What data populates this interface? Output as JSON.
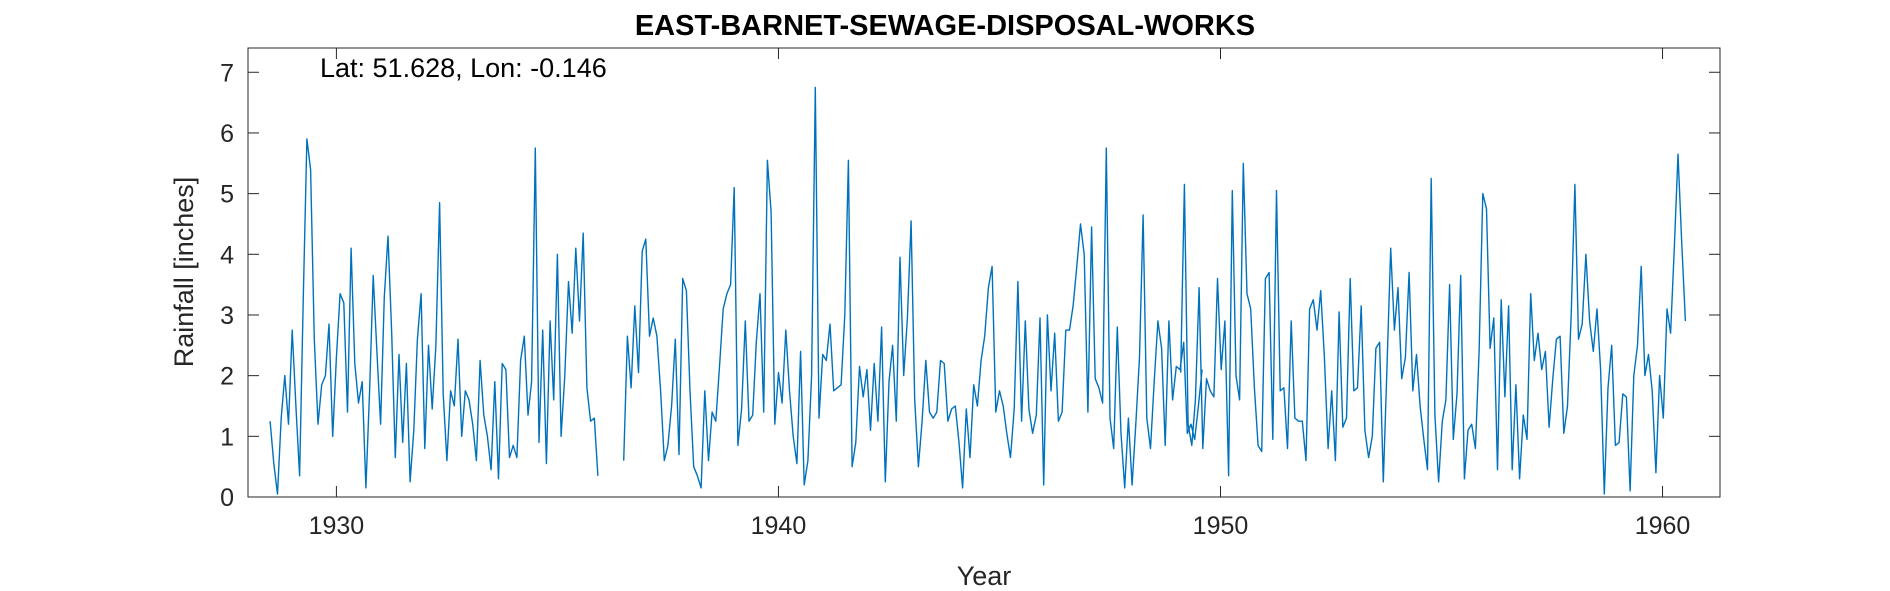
{
  "chart_data": {
    "type": "line",
    "title": "EAST-BARNET-SEWAGE-DISPOSAL-WORKS",
    "annotation": "Lat: 51.628, Lon: -0.146",
    "xlabel": "Year",
    "ylabel": "Rainfall [inches]",
    "xlim": [
      1928.0,
      1961.3
    ],
    "ylim": [
      0,
      7.4
    ],
    "xticks": [
      1930,
      1940,
      1950,
      1960
    ],
    "yticks": [
      0,
      1,
      2,
      3,
      4,
      5,
      6,
      7
    ],
    "grid": false,
    "color": "#0072BD",
    "segments": [
      {
        "start": 1928.5,
        "step": 0.0833333,
        "values": [
          1.25,
          0.55,
          0.05,
          1.3,
          2.0,
          1.2,
          2.75,
          1.5,
          0.35,
          3.3,
          5.9,
          5.4,
          2.6,
          1.2,
          1.85,
          2.0,
          2.85,
          1.0,
          2.3,
          3.35,
          3.2,
          1.4,
          4.1,
          2.2,
          1.55,
          1.9,
          0.15,
          1.75,
          3.65,
          2.4,
          1.2,
          3.3,
          4.3,
          2.7,
          0.65,
          2.35,
          0.9,
          2.2,
          0.25,
          1.1,
          2.6,
          3.35,
          0.8,
          2.5,
          1.45,
          2.5,
          4.85,
          1.7,
          0.6,
          1.75,
          1.5,
          2.6,
          1.0,
          1.75,
          1.6,
          1.2,
          0.6,
          2.25,
          1.35,
          1.0,
          0.45,
          1.9,
          0.3,
          2.2,
          2.1,
          0.65,
          0.85,
          0.65,
          2.25,
          2.65,
          1.35,
          1.9,
          5.75,
          0.9,
          2.75,
          0.55,
          2.9,
          1.6,
          4.0,
          1.0,
          2.0,
          3.55,
          2.7,
          4.1,
          2.9,
          4.35,
          1.8,
          1.25,
          1.3,
          0.35
        ]
      },
      {
        "start": 1936.5,
        "step": 0.0833333,
        "values": [
          0.6,
          2.65,
          1.8,
          3.15,
          2.05,
          4.05,
          4.25,
          2.65,
          2.95,
          2.65,
          1.75,
          0.6,
          0.85,
          1.5,
          2.6,
          0.7,
          3.6,
          3.4,
          1.75,
          0.5,
          0.35,
          0.15,
          1.75,
          0.6,
          1.4,
          1.25,
          2.15,
          3.1,
          3.35,
          3.5,
          5.1,
          0.85,
          1.45,
          2.9,
          1.25,
          1.35,
          2.55,
          3.35,
          1.4,
          5.55,
          4.7,
          1.2,
          2.05,
          1.55,
          2.75,
          1.75,
          1.0,
          0.55,
          2.4,
          0.2,
          0.6,
          2.0,
          6.75,
          1.3,
          2.35,
          2.25,
          2.85,
          1.75,
          1.8,
          1.85,
          3.0,
          5.55,
          0.5,
          0.9,
          2.15,
          1.65,
          2.1,
          1.1,
          2.2,
          1.25,
          2.8,
          0.25,
          1.9,
          2.5,
          1.25,
          3.95,
          2.0,
          2.95,
          4.55,
          1.6,
          0.5,
          1.25,
          2.25,
          1.4,
          1.3,
          1.4,
          2.25,
          2.2,
          1.25,
          1.45,
          1.5,
          0.9,
          0.15,
          1.45,
          0.65,
          1.85,
          1.5,
          2.25,
          2.65,
          3.45,
          3.8,
          1.4,
          1.75,
          1.5,
          1.05,
          0.65,
          1.45,
          3.55,
          1.25,
          2.9,
          1.45,
          1.05,
          1.35,
          2.95,
          0.2,
          3.0,
          1.75,
          2.7,
          1.25,
          1.4,
          2.75,
          2.75,
          3.15,
          3.8,
          4.5,
          4.0,
          1.4,
          4.45,
          1.95,
          1.8,
          1.55,
          5.75,
          1.3,
          0.8,
          2.8,
          1.05,
          0.15,
          1.3,
          0.2,
          1.2,
          2.3,
          4.65,
          1.3,
          0.8,
          1.9,
          2.9,
          2.45,
          0.85,
          2.9,
          1.6,
          2.15,
          2.1,
          2.55,
          1.05,
          1.2,
          0.95,
          1.5,
          2.1
        ]
      },
      {
        "start": 1949.1,
        "step": 0.0833333,
        "values": [
          2.05,
          5.15,
          1.2,
          0.85,
          1.6,
          3.45,
          0.8,
          1.95,
          1.75,
          1.65,
          3.6,
          2.1,
          2.9,
          0.35,
          5.05,
          2.0,
          1.6,
          5.5,
          3.35,
          3.1,
          1.8,
          0.85,
          0.75,
          3.6,
          3.7,
          0.95,
          5.05,
          1.75,
          1.8,
          0.8,
          2.9,
          1.3,
          1.25,
          1.25,
          0.6,
          3.1,
          3.25,
          2.75,
          3.4,
          2.3,
          0.8,
          1.75,
          0.6,
          3.05,
          1.15,
          1.3,
          3.6,
          1.75,
          1.8,
          3.15,
          1.1,
          0.65,
          1.0,
          2.45,
          2.55,
          0.25,
          2.15,
          4.1,
          2.75,
          3.45,
          1.95,
          2.3,
          3.7,
          1.75,
          2.35,
          1.5,
          0.95,
          0.45,
          5.25,
          1.35,
          0.25,
          1.25,
          1.6,
          3.5,
          0.95,
          1.7,
          3.65,
          0.3,
          1.1,
          1.2,
          0.8,
          2.4,
          5.0,
          4.75,
          2.45,
          2.95,
          0.45,
          3.25,
          1.65,
          3.15,
          0.45,
          1.85,
          0.3,
          1.35,
          0.95,
          3.35,
          2.25,
          2.7,
          2.1,
          2.4,
          1.15,
          1.95,
          2.6,
          2.65,
          1.05,
          1.5,
          3.0,
          5.15,
          2.6,
          2.85,
          4.0,
          2.9,
          2.4,
          3.1,
          2.1,
          0.05,
          1.8,
          2.5,
          0.85,
          0.9,
          1.7,
          1.65,
          0.1,
          2.0,
          2.5,
          3.8,
          2.0,
          2.35,
          1.75,
          0.4,
          2.0,
          1.3,
          3.1,
          2.7,
          4.1,
          5.65,
          4.2,
          2.9
        ]
      }
    ]
  }
}
